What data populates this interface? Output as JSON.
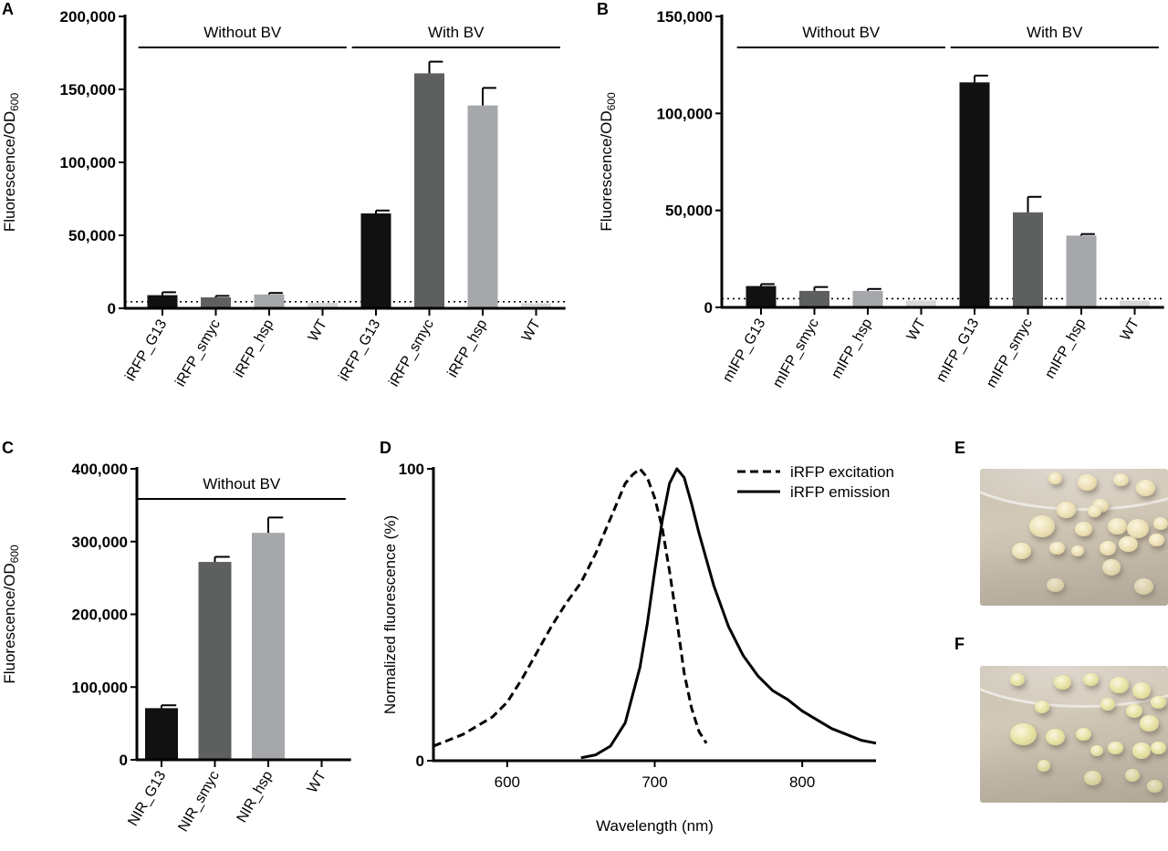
{
  "panels": {
    "A": "A",
    "B": "B",
    "C": "C",
    "D": "D",
    "E": "E",
    "F": "F"
  },
  "chart_data": [
    {
      "panel": "A",
      "type": "bar",
      "ylabel": "Fluorescence/OD",
      "ylabel_sub": "600",
      "ylim": [
        0,
        200000
      ],
      "yticks": [
        "0",
        "50,000",
        "100,000",
        "150,000",
        "200,000"
      ],
      "yticks_values": [
        0,
        50000,
        100000,
        150000,
        200000
      ],
      "categories": [
        "iRFP_G13",
        "iRFP_smyc",
        "iRFP_hsp",
        "WT",
        "iRFP_G13",
        "iRFP_smyc",
        "iRFP_hsp",
        "WT"
      ],
      "values": [
        9000,
        7500,
        9500,
        3800,
        65000,
        161000,
        139000,
        3500
      ],
      "errors": [
        2000,
        1000,
        1000,
        0,
        2000,
        8000,
        12000,
        0
      ],
      "colors": [
        "#111111",
        "#5e605f",
        "#a5a7aa",
        "#d8d8d8",
        "#111111",
        "#5e605f",
        "#a5a7aa",
        "#d8d8d8"
      ],
      "baseline": 4500,
      "groups": [
        {
          "label": "Without BV",
          "from": 0,
          "to": 3
        },
        {
          "label": "With BV",
          "from": 4,
          "to": 7
        }
      ]
    },
    {
      "panel": "B",
      "type": "bar",
      "ylabel": "Fluorescence/OD",
      "ylabel_sub": "600",
      "ylim": [
        0,
        150000
      ],
      "yticks": [
        "0",
        "50,000",
        "100,000",
        "150,000"
      ],
      "yticks_values": [
        0,
        50000,
        100000,
        150000
      ],
      "categories": [
        "mIFP_G13",
        "mIFP_smyc",
        "mIFP_hsp",
        "WT",
        "mIFP_G13",
        "mIFP_smyc",
        "mIFP_hsp",
        "WT"
      ],
      "values": [
        11000,
        8500,
        8500,
        3600,
        116000,
        49000,
        37000,
        3500
      ],
      "errors": [
        1000,
        2000,
        1000,
        0,
        3500,
        8000,
        800,
        0
      ],
      "colors": [
        "#111111",
        "#5e605f",
        "#a5a7aa",
        "#d8d8d8",
        "#111111",
        "#5e605f",
        "#a5a7aa",
        "#d8d8d8"
      ],
      "baseline": 4500,
      "groups": [
        {
          "label": "Without BV",
          "from": 0,
          "to": 3
        },
        {
          "label": "With BV",
          "from": 4,
          "to": 7
        }
      ]
    },
    {
      "panel": "C",
      "type": "bar",
      "ylabel": "Fluorescence/OD",
      "ylabel_sub": "600",
      "ylim": [
        0,
        400000
      ],
      "yticks": [
        "0",
        "100,000",
        "200,000",
        "300,000",
        "400,000"
      ],
      "yticks_values": [
        0,
        100000,
        200000,
        300000,
        400000
      ],
      "categories": [
        "NIR_G13",
        "NIR_smyc",
        "NIR_hsp",
        "WT"
      ],
      "values": [
        71000,
        272000,
        312000,
        0
      ],
      "errors": [
        4000,
        7000,
        21000,
        0
      ],
      "colors": [
        "#111111",
        "#5e605f",
        "#a5a7aa",
        "#d8d8d8"
      ],
      "groups": [
        {
          "label": "Without BV",
          "from": 0,
          "to": 3
        }
      ]
    },
    {
      "panel": "D",
      "type": "line",
      "xlabel": "Wavelength (nm)",
      "ylabel": "Normalized fluorescence (%)",
      "xlim": [
        550,
        850
      ],
      "ylim": [
        0,
        100
      ],
      "xticks": [
        "600",
        "700",
        "800"
      ],
      "xticks_values": [
        600,
        700,
        800
      ],
      "yticks": [
        "0",
        "100"
      ],
      "yticks_values": [
        0,
        100
      ],
      "legend": "top-right",
      "series": [
        {
          "name": "iRFP excitation",
          "dash": true,
          "x": [
            550,
            570,
            590,
            600,
            610,
            620,
            630,
            640,
            650,
            660,
            670,
            680,
            685,
            690,
            695,
            700,
            705,
            710,
            715,
            720,
            725,
            730,
            735
          ],
          "y": [
            5,
            9,
            15,
            20,
            28,
            37,
            46,
            54,
            61,
            71,
            83,
            95,
            98,
            100,
            97,
            90,
            80,
            65,
            48,
            30,
            18,
            10,
            6
          ]
        },
        {
          "name": "iRFP emission",
          "dash": false,
          "x": [
            650,
            660,
            670,
            680,
            690,
            695,
            700,
            705,
            710,
            715,
            720,
            725,
            730,
            740,
            750,
            760,
            770,
            780,
            790,
            800,
            810,
            820,
            830,
            840,
            850
          ],
          "y": [
            1,
            2,
            5,
            13,
            32,
            47,
            65,
            82,
            95,
            100,
            97,
            88,
            78,
            60,
            46,
            36,
            29,
            24,
            21,
            17,
            14,
            11,
            9,
            7,
            6
          ]
        }
      ]
    }
  ],
  "photos": [
    {
      "panel": "E",
      "colony_color": "#ecdfb3",
      "colonies": [
        [
          0.57,
          0.1,
          0.05
        ],
        [
          0.75,
          0.08,
          0.04
        ],
        [
          0.88,
          0.14,
          0.05
        ],
        [
          0.4,
          0.07,
          0.035
        ],
        [
          0.64,
          0.27,
          0.045
        ],
        [
          0.46,
          0.3,
          0.05
        ],
        [
          0.33,
          0.42,
          0.07
        ],
        [
          0.55,
          0.44,
          0.045
        ],
        [
          0.73,
          0.42,
          0.05
        ],
        [
          0.84,
          0.44,
          0.06
        ],
        [
          0.96,
          0.4,
          0.04
        ],
        [
          0.41,
          0.58,
          0.04
        ],
        [
          0.52,
          0.6,
          0.035
        ],
        [
          0.68,
          0.58,
          0.045
        ],
        [
          0.79,
          0.55,
          0.05
        ],
        [
          0.94,
          0.52,
          0.04
        ],
        [
          0.22,
          0.6,
          0.05
        ],
        [
          0.7,
          0.72,
          0.05
        ],
        [
          0.4,
          0.85,
          0.045
        ],
        [
          0.87,
          0.86,
          0.05
        ],
        [
          0.61,
          0.31,
          0.035
        ]
      ]
    },
    {
      "panel": "F",
      "colony_color": "#e6e2a0",
      "colonies": [
        [
          0.2,
          0.1,
          0.04
        ],
        [
          0.44,
          0.12,
          0.045
        ],
        [
          0.59,
          0.1,
          0.04
        ],
        [
          0.74,
          0.14,
          0.05
        ],
        [
          0.86,
          0.18,
          0.05
        ],
        [
          0.95,
          0.27,
          0.04
        ],
        [
          0.33,
          0.3,
          0.04
        ],
        [
          0.68,
          0.28,
          0.04
        ],
        [
          0.82,
          0.33,
          0.045
        ],
        [
          0.9,
          0.42,
          0.05
        ],
        [
          0.23,
          0.5,
          0.07
        ],
        [
          0.4,
          0.52,
          0.05
        ],
        [
          0.55,
          0.5,
          0.04
        ],
        [
          0.62,
          0.62,
          0.035
        ],
        [
          0.72,
          0.6,
          0.04
        ],
        [
          0.86,
          0.62,
          0.05
        ],
        [
          0.95,
          0.6,
          0.04
        ],
        [
          0.6,
          0.82,
          0.045
        ],
        [
          0.81,
          0.8,
          0.04
        ],
        [
          0.93,
          0.88,
          0.04
        ],
        [
          0.34,
          0.73,
          0.035
        ]
      ]
    }
  ]
}
